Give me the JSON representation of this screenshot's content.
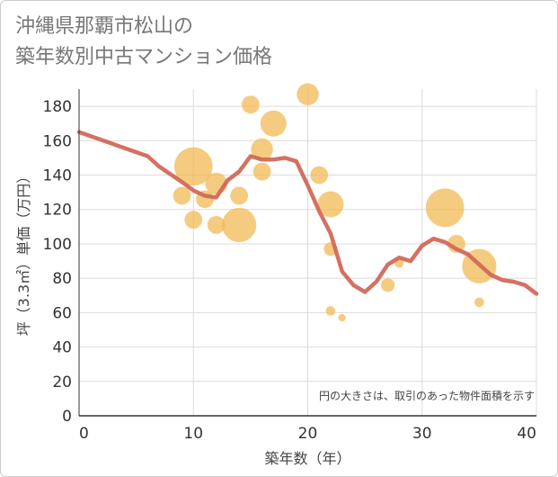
{
  "title": "沖縄県那覇市松山の\n築年数別中古マンション価格",
  "chart_data": {
    "type": "scatter",
    "title": "沖縄県那覇市松山の 築年数別中古マンション価格",
    "xlabel": "築年数（年）",
    "ylabel": "坪（3.3㎡）単価（万円）",
    "xlim": [
      0,
      40
    ],
    "ylim": [
      0,
      190
    ],
    "x_ticks": [
      "0",
      "10",
      "20",
      "30",
      "40"
    ],
    "y_ticks": [
      "0",
      "20",
      "40",
      "60",
      "80",
      "100",
      "120",
      "140",
      "160",
      "180"
    ],
    "grid": true,
    "note": "円の大きさは、取引のあった物件面積を示す",
    "colors": {
      "bubble": "#f2b955",
      "trend": "#d2695a",
      "grid": "#dcdcdc"
    },
    "bubbles": [
      {
        "x": 9,
        "y": 128,
        "size": 3
      },
      {
        "x": 10,
        "y": 145,
        "size": 8
      },
      {
        "x": 10,
        "y": 114,
        "size": 3
      },
      {
        "x": 11,
        "y": 126,
        "size": 3
      },
      {
        "x": 12,
        "y": 135,
        "size": 4
      },
      {
        "x": 12,
        "y": 111,
        "size": 3
      },
      {
        "x": 14,
        "y": 128,
        "size": 3
      },
      {
        "x": 14,
        "y": 111,
        "size": 7
      },
      {
        "x": 15,
        "y": 181,
        "size": 3
      },
      {
        "x": 16,
        "y": 155,
        "size": 4
      },
      {
        "x": 16,
        "y": 142,
        "size": 3
      },
      {
        "x": 17,
        "y": 170,
        "size": 5
      },
      {
        "x": 20,
        "y": 187,
        "size": 4
      },
      {
        "x": 21,
        "y": 140,
        "size": 3
      },
      {
        "x": 22,
        "y": 123,
        "size": 5
      },
      {
        "x": 22,
        "y": 97,
        "size": 2
      },
      {
        "x": 22,
        "y": 61,
        "size": 1
      },
      {
        "x": 23,
        "y": 57,
        "size": 0.5
      },
      {
        "x": 27,
        "y": 76,
        "size": 2
      },
      {
        "x": 28,
        "y": 89,
        "size": 1
      },
      {
        "x": 32,
        "y": 121,
        "size": 8
      },
      {
        "x": 33,
        "y": 100,
        "size": 3
      },
      {
        "x": 35,
        "y": 87,
        "size": 7
      },
      {
        "x": 35,
        "y": 66,
        "size": 1
      }
    ],
    "trend": [
      {
        "x": 0,
        "y": 165
      },
      {
        "x": 6,
        "y": 151
      },
      {
        "x": 7,
        "y": 145
      },
      {
        "x": 9,
        "y": 136
      },
      {
        "x": 10,
        "y": 131
      },
      {
        "x": 11,
        "y": 128
      },
      {
        "x": 12,
        "y": 127
      },
      {
        "x": 13,
        "y": 137
      },
      {
        "x": 14,
        "y": 142
      },
      {
        "x": 15,
        "y": 151
      },
      {
        "x": 16,
        "y": 149
      },
      {
        "x": 17,
        "y": 149
      },
      {
        "x": 18,
        "y": 150
      },
      {
        "x": 19,
        "y": 148
      },
      {
        "x": 20,
        "y": 134
      },
      {
        "x": 21,
        "y": 119
      },
      {
        "x": 22,
        "y": 106
      },
      {
        "x": 23,
        "y": 84
      },
      {
        "x": 24,
        "y": 76
      },
      {
        "x": 25,
        "y": 72
      },
      {
        "x": 26,
        "y": 78
      },
      {
        "x": 27,
        "y": 88
      },
      {
        "x": 28,
        "y": 92
      },
      {
        "x": 29,
        "y": 90
      },
      {
        "x": 30,
        "y": 99
      },
      {
        "x": 31,
        "y": 103
      },
      {
        "x": 32,
        "y": 101
      },
      {
        "x": 33,
        "y": 97
      },
      {
        "x": 34,
        "y": 94
      },
      {
        "x": 35,
        "y": 88
      },
      {
        "x": 36,
        "y": 82
      },
      {
        "x": 37,
        "y": 79
      },
      {
        "x": 38,
        "y": 78
      },
      {
        "x": 39,
        "y": 76
      },
      {
        "x": 40,
        "y": 71
      }
    ]
  }
}
